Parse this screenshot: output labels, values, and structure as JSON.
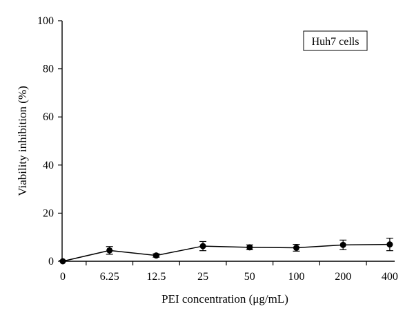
{
  "chart_data": {
    "type": "line",
    "categories": [
      "0",
      "6.25",
      "12.5",
      "25",
      "50",
      "100",
      "200",
      "400"
    ],
    "series": [
      {
        "values": [
          0,
          4.5,
          2.4,
          6.3,
          5.8,
          5.6,
          6.8,
          7.0
        ],
        "errors": [
          0.4,
          1.6,
          0.7,
          1.9,
          1.0,
          1.4,
          2.0,
          2.6
        ],
        "color": "#000000"
      }
    ],
    "ylim": [
      0,
      100
    ],
    "yticks": [
      "0",
      "20",
      "40",
      "60",
      "80",
      "100"
    ],
    "xlabel": "PEI concentration (μg/mL)",
    "ylabel": "Viability inhibition (%)",
    "annotation": "Huh7 cells",
    "legend_position": "top-right",
    "grid": false
  }
}
